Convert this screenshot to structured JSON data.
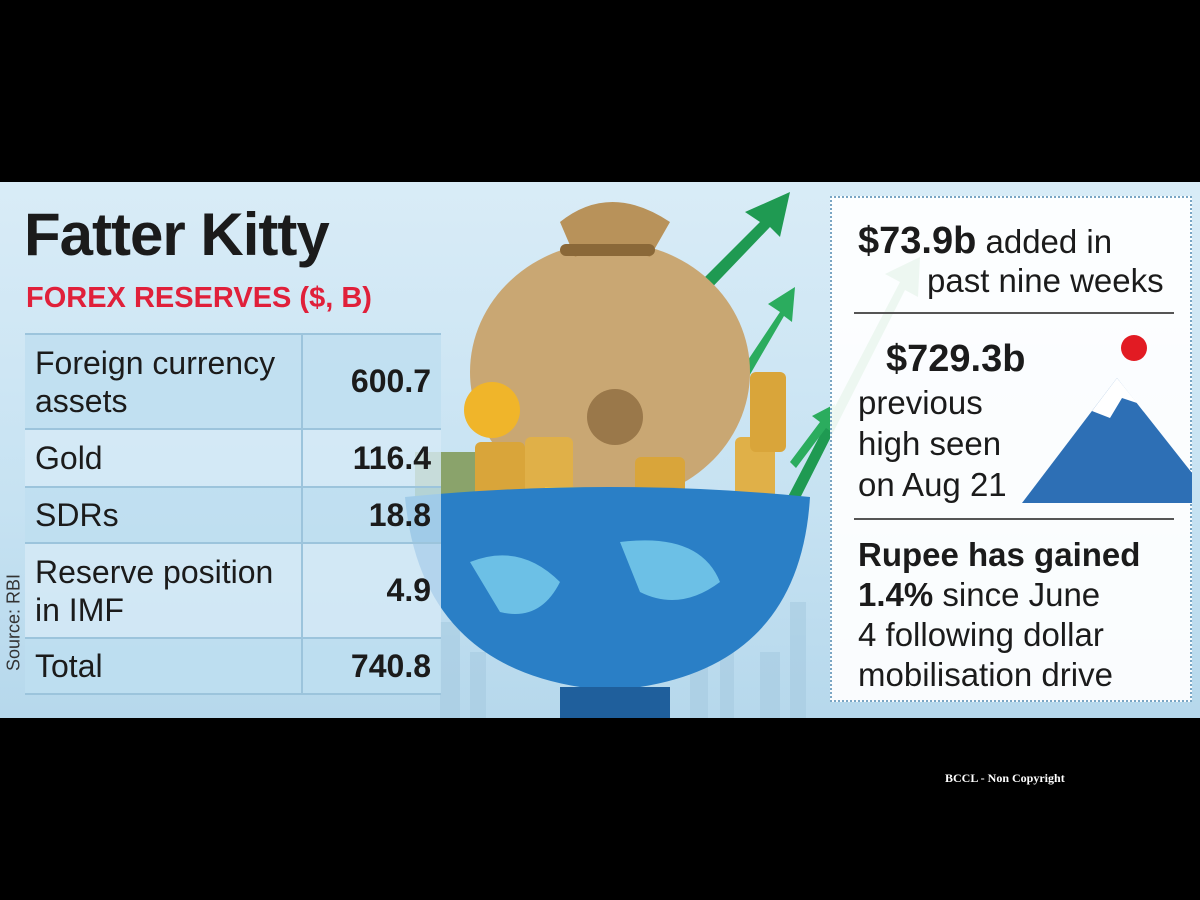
{
  "header": {
    "title": "Fatter Kitty",
    "subtitle": "FOREX RESERVES ($, B)"
  },
  "table": {
    "rows": [
      [
        "Foreign currency assets",
        600.7
      ],
      [
        "Gold",
        116.4
      ],
      [
        "SDRs",
        18.8
      ],
      [
        "Reserve position in IMF",
        4.9
      ],
      [
        "Total",
        740.8
      ]
    ]
  },
  "source": "Source: RBI",
  "callouts": [
    {
      "lead": "$73.9b",
      "lines": [
        "added in",
        "past nine weeks"
      ]
    },
    {
      "lead": "$729.3b",
      "lines": [
        "previous",
        "high seen",
        "on Aug 21"
      ]
    },
    {
      "lead": "Rupee has gained",
      "figure": "1.4%",
      "lines": [
        "since June",
        "4 following dollar",
        "mobilisation drive"
      ]
    }
  ],
  "watermark": "BCCL - Non Copyright"
}
